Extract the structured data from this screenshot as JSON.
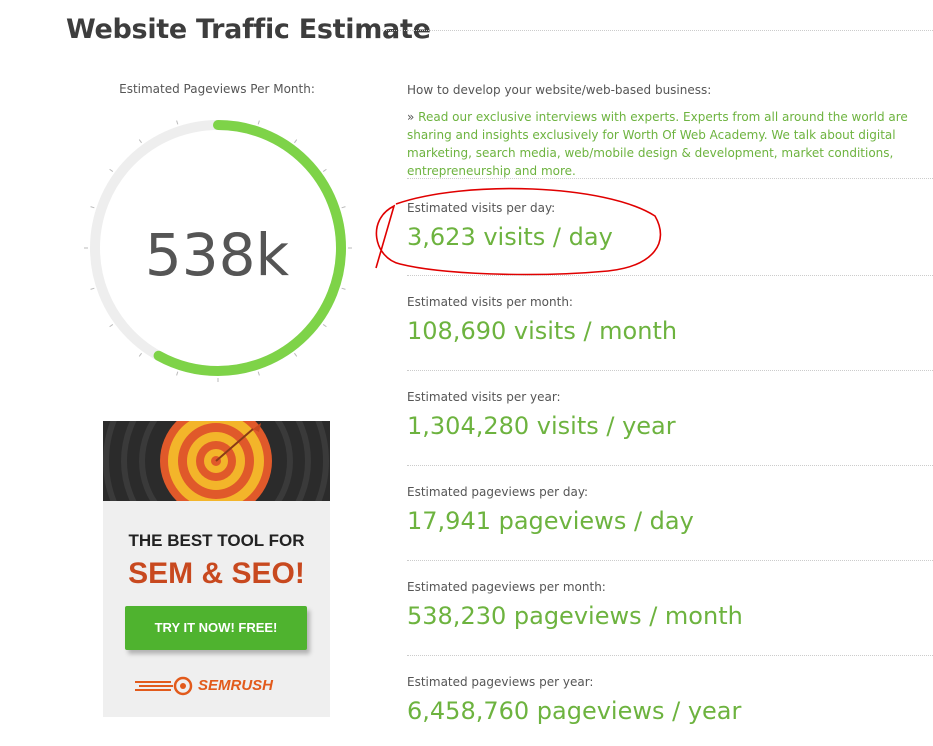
{
  "page": {
    "title": "Website Traffic Estimate"
  },
  "gauge": {
    "caption": "Estimated Pageviews Per Month:",
    "value": "538k",
    "fill_fraction": 0.58,
    "track_color": "#eeeeee",
    "fill_color": "#7ed348"
  },
  "intro": {
    "heading": "How to develop your website/web-based business:",
    "prefix": "»",
    "text": "Read our exclusive interviews with experts. Experts from all around the world are sharing and insights exclusively for Worth Of Web Academy. We talk about digital marketing, search media, web/mobile design & development, market conditions, entrepreneurship and more."
  },
  "stats": [
    {
      "label": "Estimated visits per day:",
      "value": "3,623 visits / day"
    },
    {
      "label": "Estimated visits per month:",
      "value": "108,690 visits / month"
    },
    {
      "label": "Estimated visits per year:",
      "value": "1,304,280 visits / year"
    },
    {
      "label": "Estimated pageviews per day:",
      "value": "17,941 pageviews / day"
    },
    {
      "label": "Estimated pageviews per month:",
      "value": "538,230 pageviews / month"
    },
    {
      "label": "Estimated pageviews per year:",
      "value": "6,458,760 pageviews / year"
    }
  ],
  "ad": {
    "line1": "THE BEST TOOL FOR",
    "line2": "SEM & SEO!",
    "button": "TRY IT NOW! FREE!",
    "brand": "SEMRUSH",
    "accent": "#c8491f",
    "button_color": "#4fb32f"
  },
  "annotation": {
    "color": "#e00000"
  }
}
